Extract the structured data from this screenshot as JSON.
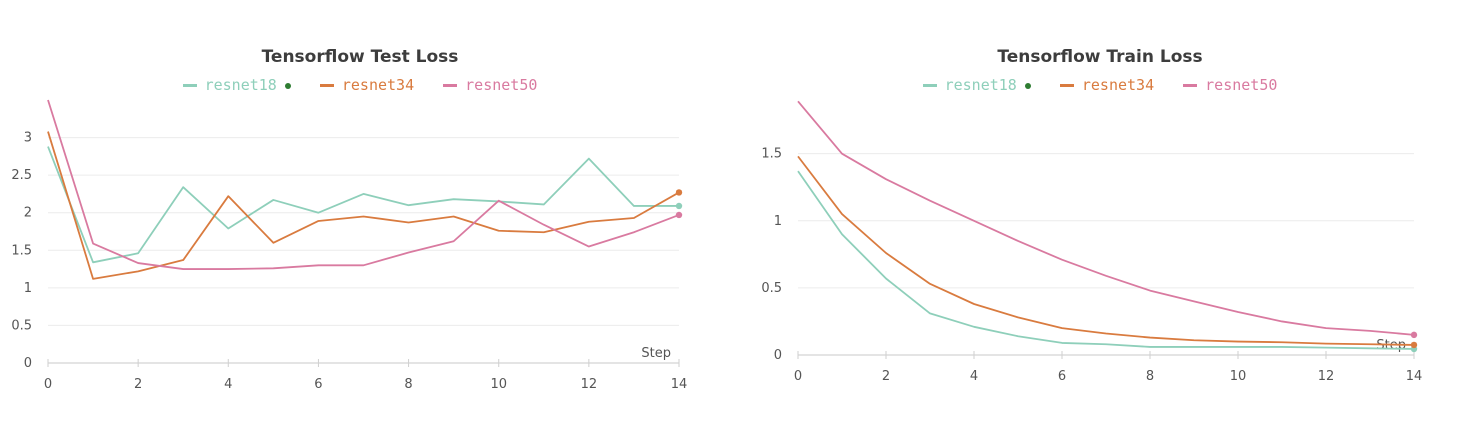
{
  "chart_data": [
    {
      "type": "line",
      "title": "Tensorflow Test Loss",
      "xlabel": "Step",
      "ylabel": "",
      "xlim": [
        0,
        14
      ],
      "ylim": [
        0,
        3.5
      ],
      "xticks": [
        "0",
        "2",
        "4",
        "6",
        "8",
        "10",
        "12",
        "14"
      ],
      "yticks": [
        "0",
        "0.5",
        "1",
        "1.5",
        "2",
        "2.5",
        "3"
      ],
      "grid": true,
      "legend_position": "top",
      "x": [
        0,
        1,
        2,
        3,
        4,
        5,
        6,
        7,
        8,
        9,
        10,
        11,
        12,
        13,
        14
      ],
      "series": [
        {
          "name": "resnet18",
          "color": "#8ecfba",
          "marker": "green-dot",
          "values": [
            2.88,
            1.34,
            1.46,
            2.34,
            1.79,
            2.17,
            2.0,
            2.25,
            2.1,
            2.18,
            2.15,
            2.11,
            2.72,
            2.09,
            2.09
          ]
        },
        {
          "name": "resnet34",
          "color": "#d97b3f",
          "values": [
            3.08,
            1.12,
            1.22,
            1.37,
            2.22,
            1.6,
            1.89,
            1.95,
            1.87,
            1.95,
            1.76,
            1.74,
            1.88,
            1.93,
            2.27
          ]
        },
        {
          "name": "resnet50",
          "color": "#d97aa0",
          "values": [
            3.5,
            1.59,
            1.33,
            1.25,
            1.25,
            1.26,
            1.3,
            1.3,
            1.47,
            1.62,
            2.16,
            1.84,
            1.55,
            1.74,
            1.97
          ]
        }
      ]
    },
    {
      "type": "line",
      "title": "Tensorflow Train Loss",
      "xlabel": "Step",
      "ylabel": "",
      "xlim": [
        0,
        14
      ],
      "ylim": [
        0,
        1.9
      ],
      "xticks": [
        "0",
        "2",
        "4",
        "6",
        "8",
        "10",
        "12",
        "14"
      ],
      "yticks": [
        "0",
        "0.5",
        "1",
        "1.5"
      ],
      "grid": true,
      "legend_position": "top",
      "x": [
        0,
        1,
        2,
        3,
        4,
        5,
        6,
        7,
        8,
        9,
        10,
        11,
        12,
        13,
        14
      ],
      "series": [
        {
          "name": "resnet18",
          "color": "#8ecfba",
          "marker": "green-dot",
          "values": [
            1.37,
            0.9,
            0.57,
            0.31,
            0.21,
            0.14,
            0.09,
            0.08,
            0.06,
            0.06,
            0.06,
            0.06,
            0.055,
            0.05,
            0.045
          ]
        },
        {
          "name": "resnet34",
          "color": "#d97b3f",
          "values": [
            1.48,
            1.05,
            0.76,
            0.53,
            0.38,
            0.28,
            0.2,
            0.16,
            0.13,
            0.11,
            0.1,
            0.095,
            0.085,
            0.08,
            0.075
          ]
        },
        {
          "name": "resnet50",
          "color": "#d97aa0",
          "values": [
            1.89,
            1.5,
            1.31,
            1.15,
            1.0,
            0.85,
            0.71,
            0.59,
            0.48,
            0.4,
            0.32,
            0.25,
            0.2,
            0.18,
            0.15
          ]
        }
      ]
    }
  ]
}
